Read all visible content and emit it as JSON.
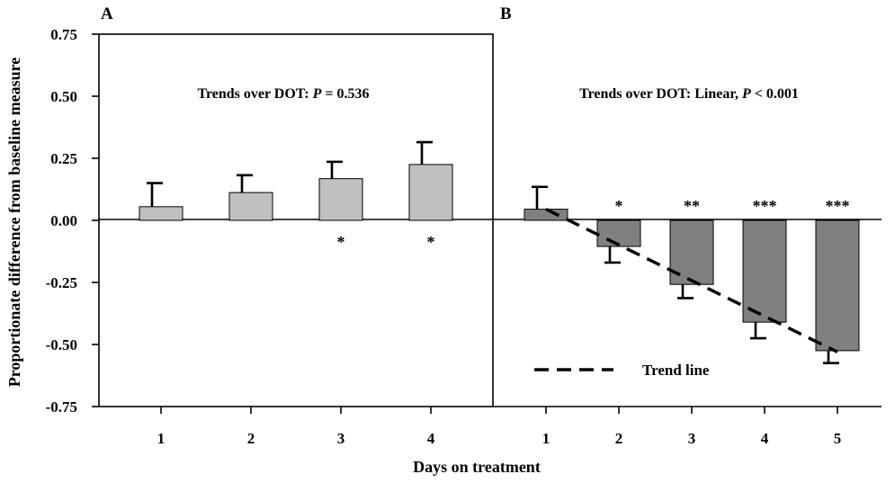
{
  "ylabel": "Proportionate difference from baseline measure",
  "xlabel": "Days on treatment",
  "colors": {
    "panel_a_bar": "#c0c0c0",
    "panel_b_bar": "#808080",
    "stroke": "#000000"
  },
  "chart_data": [
    {
      "type": "bar",
      "panel": "A",
      "annotation_prefix": "Trends over DOT:  ",
      "annotation_p": "P",
      "annotation_suffix": " = 0.536",
      "categories": [
        "1",
        "2",
        "3",
        "4"
      ],
      "values": [
        0.055,
        0.112,
        0.168,
        0.225
      ],
      "errors": [
        0.095,
        0.07,
        0.068,
        0.09
      ],
      "significance": [
        "",
        "",
        "*",
        "*"
      ],
      "ylim": [
        -0.75,
        0.75
      ],
      "yticks": [
        "0.75",
        "0.50",
        "0.25",
        "0.00",
        "-0.25",
        "-0.50",
        "-0.75"
      ],
      "ytick_values": [
        0.75,
        0.5,
        0.25,
        0,
        -0.25,
        -0.5,
        -0.75
      ]
    },
    {
      "type": "bar",
      "panel": "B",
      "annotation_prefix": "Trends over DOT:  Linear, ",
      "annotation_p": "P",
      "annotation_suffix": " < 0.001",
      "categories": [
        "1",
        "2",
        "3",
        "4",
        "5"
      ],
      "values": [
        0.045,
        -0.105,
        -0.258,
        -0.41,
        -0.525
      ],
      "errors": [
        0.09,
        0.065,
        0.055,
        0.065,
        0.05
      ],
      "significance": [
        "",
        "*",
        "**",
        "***",
        "***"
      ],
      "trend_line": {
        "label": "Trend line",
        "start": 0.045,
        "end": -0.53
      },
      "ylim": [
        -0.75,
        0.75
      ]
    }
  ]
}
